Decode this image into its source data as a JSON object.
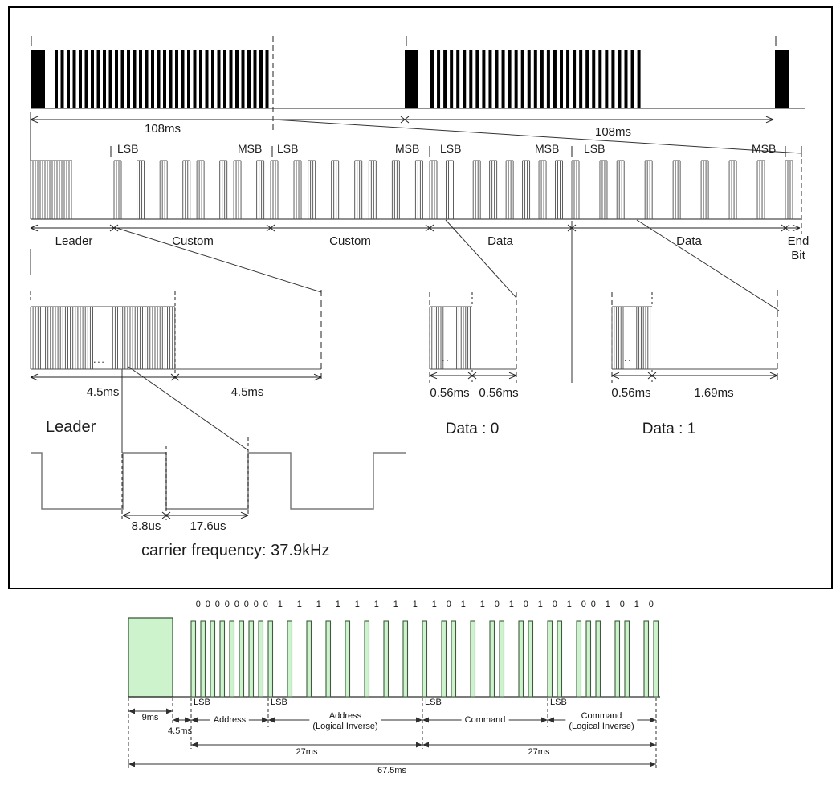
{
  "colors": {
    "line": "#222222",
    "wave_gray": "#7a7a7a",
    "hatch": "#4c4c4c",
    "green_fill": "#cdf3cd",
    "green_stroke": "#3f5a3f",
    "green_line": "#2f2f2f"
  },
  "top_waveform": {
    "period1_label": "108ms",
    "period2_label": "108ms"
  },
  "frame_detail": {
    "markers": [
      "LSB",
      "MSB",
      "LSB",
      "MSB",
      "LSB",
      "MSB",
      "LSB",
      "MSB"
    ],
    "sections": [
      "Leader",
      "Custom",
      "Custom",
      "Data",
      "Data",
      "End\nBit"
    ],
    "bit_patterns": {
      "custom": [
        1,
        1,
        1,
        0,
        1,
        0,
        1,
        0
      ],
      "custom2": [
        1,
        0,
        1,
        1,
        0,
        1,
        1,
        0
      ],
      "data": [
        0,
        1,
        0,
        0,
        0,
        0,
        0,
        0
      ],
      "data_inverse": [
        1,
        0,
        1,
        1,
        1,
        1,
        1,
        1
      ]
    }
  },
  "leader_detail": {
    "burst_label": "4.5ms",
    "space_label": "4.5ms",
    "title": "Leader",
    "ellipsis": "..."
  },
  "data0_detail": {
    "burst_label": "0.56ms",
    "space_label": "0.56ms",
    "title": "Data : 0",
    "ellipsis": ".."
  },
  "data1_detail": {
    "burst_label": "0.56ms",
    "space_label": "1.69ms",
    "title": "Data : 1",
    "ellipsis": ".."
  },
  "carrier_detail": {
    "on_label": "8.8us",
    "off_label": "17.6us",
    "caption": "carrier frequency: 37.9kHz"
  },
  "encoded_frame": {
    "bits": [
      0,
      0,
      0,
      0,
      0,
      0,
      0,
      0,
      1,
      1,
      1,
      1,
      1,
      1,
      1,
      1,
      1,
      0,
      1,
      1,
      0,
      1,
      0,
      1,
      0,
      1,
      0,
      0,
      1,
      0,
      1,
      0
    ],
    "lsb_markers": [
      "LSB",
      "LSB",
      "LSB",
      "LSB"
    ],
    "leader_duration": "9ms",
    "gap_duration": "4.5ms",
    "sections": [
      "Address",
      "Address\n(Logical Inverse)",
      "Command",
      "Command\n(Logical Inverse)"
    ],
    "half_frame_durations": [
      "27ms",
      "27ms"
    ],
    "total_duration": "67.5ms"
  }
}
